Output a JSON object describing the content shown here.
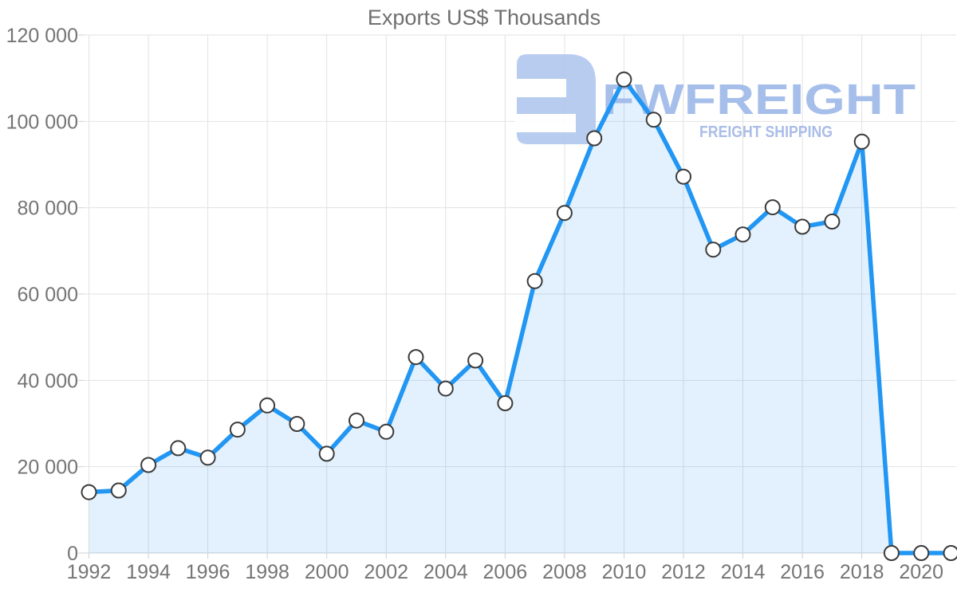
{
  "title": "Exports US$ Thousands",
  "watermark": {
    "brand": "FWFREIGHT",
    "tagline": "FREIGHT SHIPPING"
  },
  "colors": {
    "line": "#2196f3",
    "area_fill": "rgba(33,150,243,0.13)",
    "marker_fill": "#ffffff",
    "marker_stroke": "#3b3b3b",
    "grid": "#e2e2e2",
    "axis_line": "#cfcfcf",
    "axis_text": "#757575",
    "title_text": "#6f6f6f",
    "watermark_icon": "#b3c8ef",
    "watermark_text": "#9fb9e9",
    "watermark_tagline": "#a3b8e5"
  },
  "chart_data": {
    "type": "area",
    "title": "Exports US$ Thousands",
    "xlabel": "",
    "ylabel": "",
    "x": [
      1992,
      1993,
      1994,
      1995,
      1996,
      1997,
      1998,
      1999,
      2000,
      2001,
      2002,
      2003,
      2004,
      2005,
      2006,
      2007,
      2008,
      2009,
      2010,
      2011,
      2012,
      2013,
      2014,
      2015,
      2016,
      2017,
      2018,
      2019,
      2020,
      2021
    ],
    "values": [
      14100,
      14500,
      20400,
      24300,
      22100,
      28600,
      34200,
      29900,
      23000,
      30700,
      28100,
      45400,
      38100,
      44600,
      34700,
      63000,
      78800,
      96100,
      109700,
      100400,
      87200,
      70300,
      73800,
      80100,
      75600,
      76800,
      95300,
      0,
      0,
      0
    ],
    "ylim": [
      0,
      120000
    ],
    "ytick_step": 20000,
    "xtick_labels": [
      1992,
      1994,
      1996,
      1998,
      2000,
      2002,
      2004,
      2006,
      2008,
      2010,
      2012,
      2014,
      2016,
      2018,
      2020
    ],
    "grid": true,
    "legend": false,
    "markers": true
  }
}
